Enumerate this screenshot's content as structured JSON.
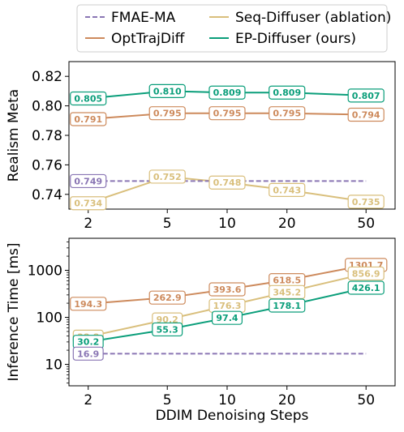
{
  "chart_data": [
    {
      "type": "line",
      "title": "",
      "xlabel": "",
      "ylabel": "Realism Meta",
      "x_scale": "log",
      "categories": [
        "2",
        "5",
        "10",
        "20",
        "50"
      ],
      "x": [
        2,
        5,
        10,
        20,
        50
      ],
      "ylim": [
        0.73,
        0.83
      ],
      "yticks": [
        0.74,
        0.76,
        0.78,
        0.8,
        0.82
      ],
      "ytick_labels": [
        "0.74",
        "0.76",
        "0.78",
        "0.80",
        "0.82"
      ],
      "grid": false,
      "series": [
        {
          "name": "EP-Diffuser (ours)",
          "color": "#0a9e7a",
          "values": [
            0.805,
            0.81,
            0.809,
            0.809,
            0.807
          ],
          "labels": [
            "0.805",
            "0.810",
            "0.809",
            "0.809",
            "0.807"
          ]
        },
        {
          "name": "OptTrajDiff",
          "color": "#cd8a5c",
          "values": [
            0.791,
            0.795,
            0.795,
            0.795,
            0.794
          ],
          "labels": [
            "0.791",
            "0.795",
            "0.795",
            "0.795",
            "0.794"
          ]
        },
        {
          "name": "Seq-Diffuser (ablation)",
          "color": "#d9bf7c",
          "values": [
            0.734,
            0.752,
            0.748,
            0.743,
            0.735
          ],
          "labels": [
            "0.734",
            "0.752",
            "0.748",
            "0.743",
            "0.735"
          ]
        },
        {
          "name": "FMAE-MA",
          "color": "#8a76b4",
          "dashed": true,
          "constant": 0.749,
          "label": "0.749"
        }
      ]
    },
    {
      "type": "line",
      "title": "",
      "xlabel": "DDIM Denoising Steps",
      "ylabel": "Inference Time [ms]",
      "x_scale": "log",
      "y_scale": "log",
      "categories": [
        "2",
        "5",
        "10",
        "20",
        "50"
      ],
      "x": [
        2,
        5,
        10,
        20,
        50
      ],
      "ylim": [
        3.5,
        4800
      ],
      "yticks": [
        10,
        100,
        1000
      ],
      "ytick_labels": [
        "10",
        "100",
        "1000"
      ],
      "grid": false,
      "series": [
        {
          "name": "OptTrajDiff",
          "color": "#cd8a5c",
          "values": [
            194.3,
            262.9,
            393.6,
            618.5,
            1301.7
          ],
          "labels": [
            "194.3",
            "262.9",
            "393.6",
            "618.5",
            "1301.7"
          ]
        },
        {
          "name": "Seq-Diffuser (ablation)",
          "color": "#d9bf7c",
          "values": [
            38.8,
            90.2,
            176.3,
            345.2,
            856.9
          ],
          "labels": [
            "38.8",
            "90.2",
            "176.3",
            "345.2",
            "856.9"
          ]
        },
        {
          "name": "EP-Diffuser (ours)",
          "color": "#0a9e7a",
          "values": [
            30.2,
            55.3,
            97.4,
            178.1,
            426.1
          ],
          "labels": [
            "30.2",
            "55.3",
            "97.4",
            "178.1",
            "426.1"
          ]
        },
        {
          "name": "FMAE-MA",
          "color": "#8a76b4",
          "dashed": true,
          "constant": 16.9,
          "label": "16.9"
        }
      ]
    }
  ],
  "legend": {
    "placement": "top",
    "items": [
      {
        "name": "FMAE-MA",
        "color": "#8a76b4",
        "dashed": true
      },
      {
        "name": "Seq-Diffuser (ablation)",
        "color": "#d9bf7c",
        "dashed": false
      },
      {
        "name": "OptTrajDiff",
        "color": "#cd8a5c",
        "dashed": false
      },
      {
        "name": "EP-Diffuser (ours)",
        "color": "#0a9e7a",
        "dashed": false
      }
    ]
  }
}
